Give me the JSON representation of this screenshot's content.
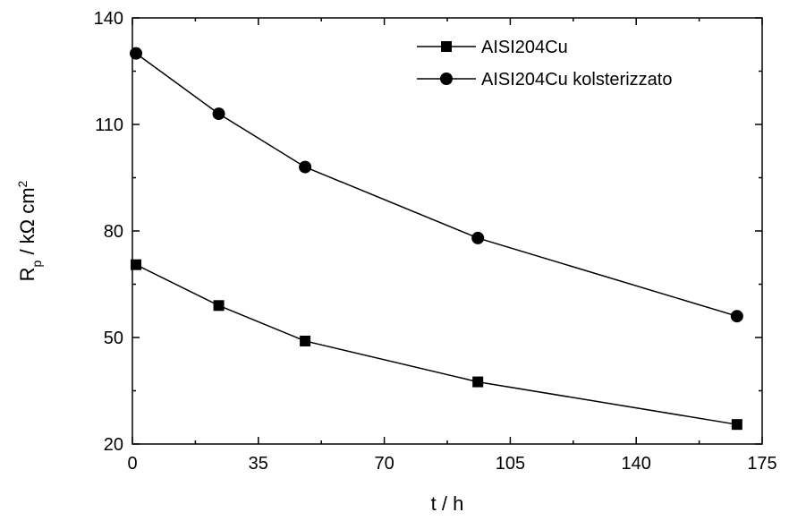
{
  "chart_data": {
    "type": "line",
    "title": "",
    "xlabel": "t / h",
    "ylabel": {
      "base": "R",
      "sub": "p",
      "mid": " / kΩ cm",
      "sup": "2"
    },
    "xlim": [
      0,
      175
    ],
    "ylim": [
      20,
      140
    ],
    "xticks": [
      0,
      35,
      70,
      105,
      140,
      175
    ],
    "yticks": [
      20,
      50,
      80,
      110,
      140
    ],
    "grid": false,
    "legend_position": "top-right",
    "series": [
      {
        "name": "AISI204Cu",
        "marker": "square",
        "color": "#000000",
        "x": [
          1,
          24,
          48,
          96,
          168
        ],
        "y": [
          70.5,
          59,
          49,
          37.5,
          25.5
        ]
      },
      {
        "name": "AISI204Cu kolsterizzato",
        "marker": "circle",
        "color": "#000000",
        "x": [
          1,
          24,
          48,
          96,
          168
        ],
        "y": [
          130,
          113,
          98,
          78,
          56
        ]
      }
    ]
  }
}
